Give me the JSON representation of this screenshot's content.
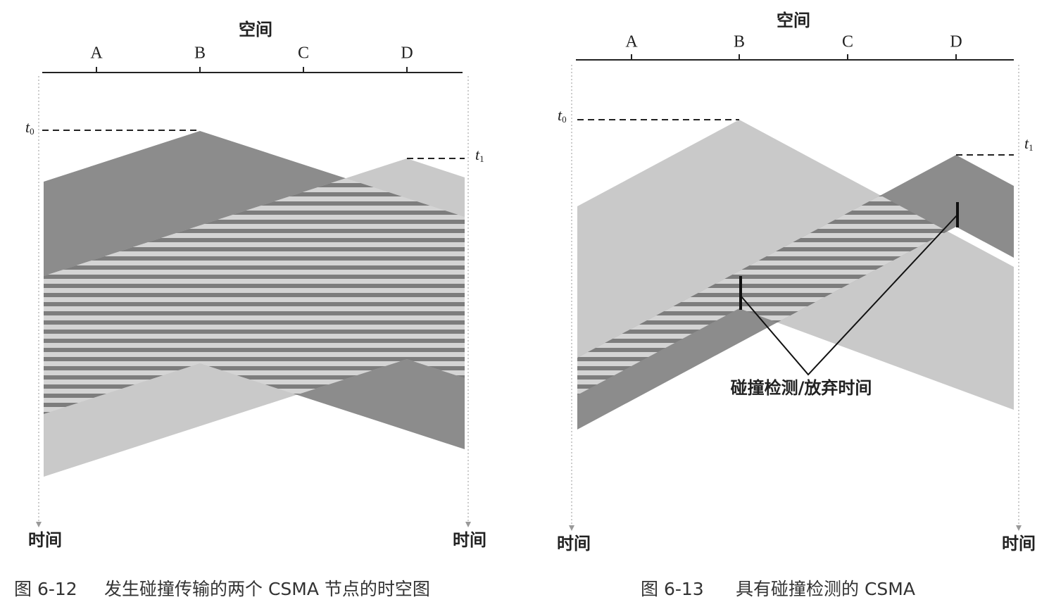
{
  "figures": [
    {
      "space_label": "空间",
      "nodes": [
        "A",
        "B",
        "C",
        "D"
      ],
      "t0": {
        "symbol": "t",
        "subscript": "0"
      },
      "t1": {
        "symbol": "t",
        "subscript": "1"
      },
      "time_left": "时间",
      "time_right": "时间",
      "caption": {
        "number": "图 6-12",
        "text": "发生碰撞传输的两个 CSMA 节点的时空图"
      }
    },
    {
      "space_label": "空间",
      "nodes": [
        "A",
        "B",
        "C",
        "D"
      ],
      "t0": {
        "symbol": "t",
        "subscript": "0"
      },
      "t1": {
        "symbol": "t",
        "subscript": "1"
      },
      "annotation": "碰撞检测/放弃时间",
      "time_left": "时间",
      "time_right": "时间",
      "caption": {
        "number": "图 6-13",
        "text": "具有碰撞检测的 CSMA"
      }
    }
  ]
}
